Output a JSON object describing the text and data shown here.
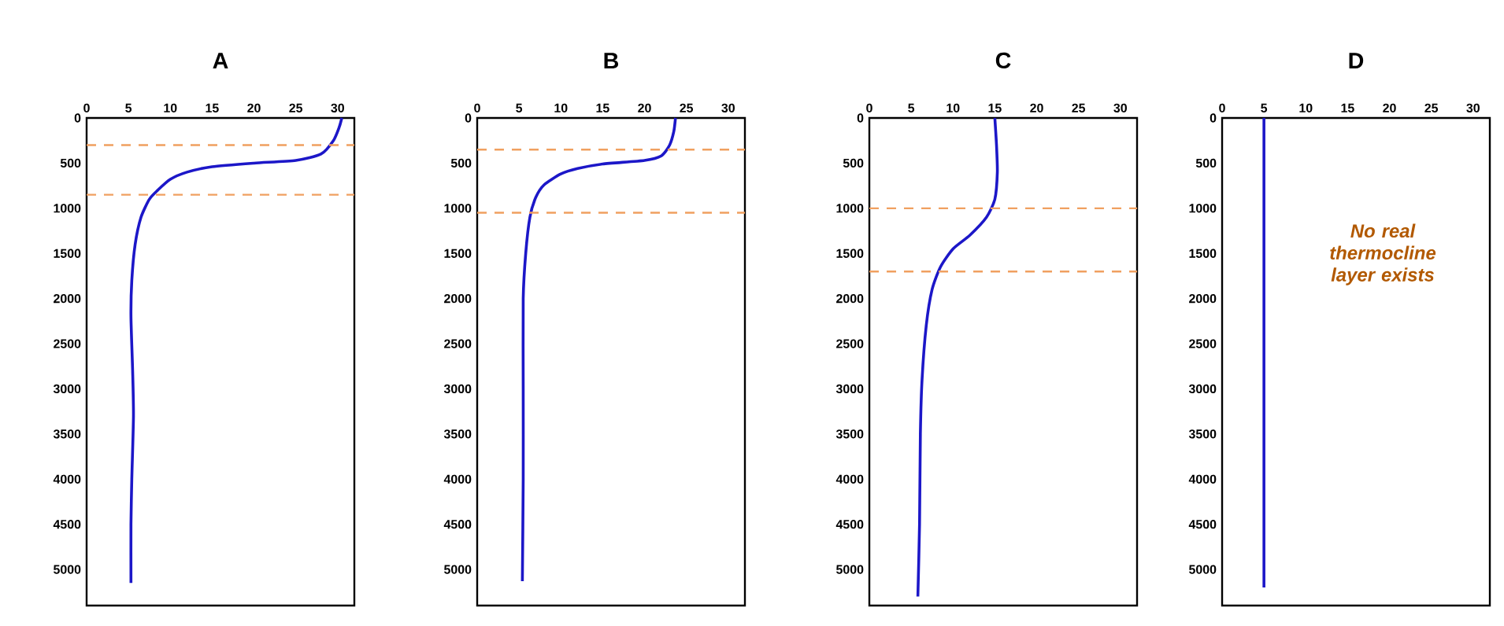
{
  "chart_data": [
    {
      "type": "line",
      "title": "A",
      "xlim": [
        0,
        32
      ],
      "xticks": [
        0,
        5,
        10,
        15,
        20,
        25,
        30
      ],
      "ylim": [
        5400,
        0
      ],
      "yticks": [
        0,
        500,
        1000,
        1500,
        2000,
        2500,
        3000,
        3500,
        4000,
        4500,
        5000
      ],
      "series": [
        {
          "color": "#1c17c8",
          "x": [
            30.5,
            30.2,
            29.5,
            28,
            25,
            20,
            15,
            12,
            10,
            8.5,
            7.5,
            6.5,
            5.8,
            5.4,
            5.3,
            5.5,
            5.6,
            5.4,
            5.3,
            5.3
          ],
          "values": [
            0,
            100,
            250,
            400,
            470,
            500,
            540,
            600,
            680,
            800,
            900,
            1100,
            1400,
            1800,
            2200,
            2800,
            3300,
            4000,
            4500,
            5150
          ]
        }
      ],
      "ref_lines": [
        {
          "axis": "y",
          "value": 300,
          "color": "#f0a060",
          "line_style": "dashed"
        },
        {
          "axis": "y",
          "value": 850,
          "color": "#f0a060",
          "line_style": "dashed"
        }
      ]
    },
    {
      "type": "line",
      "title": "B",
      "xlim": [
        0,
        32
      ],
      "xticks": [
        0,
        5,
        10,
        15,
        20,
        25,
        30
      ],
      "ylim": [
        5400,
        0
      ],
      "yticks": [
        0,
        500,
        1000,
        1500,
        2000,
        2500,
        3000,
        3500,
        4000,
        4500,
        5000
      ],
      "series": [
        {
          "color": "#1c17c8",
          "x": [
            23.7,
            23.5,
            23,
            22,
            20,
            15,
            12,
            10,
            8,
            7,
            6.3,
            5.8,
            5.5,
            5.5,
            5.5,
            5.4
          ],
          "values": [
            0,
            150,
            300,
            420,
            470,
            510,
            560,
            620,
            740,
            880,
            1100,
            1500,
            2000,
            3000,
            4000,
            5130
          ]
        }
      ],
      "ref_lines": [
        {
          "axis": "y",
          "value": 350,
          "color": "#f0a060",
          "line_style": "dashed"
        },
        {
          "axis": "y",
          "value": 1050,
          "color": "#f0a060",
          "line_style": "dashed"
        }
      ]
    },
    {
      "type": "line",
      "title": "C",
      "xlim": [
        0,
        32
      ],
      "xticks": [
        0,
        5,
        10,
        15,
        20,
        25,
        30
      ],
      "ylim": [
        5400,
        0
      ],
      "yticks": [
        0,
        500,
        1000,
        1500,
        2000,
        2500,
        3000,
        3500,
        4000,
        4500,
        5000
      ],
      "series": [
        {
          "color": "#1c17c8",
          "x": [
            15,
            15.2,
            15.3,
            15,
            14,
            12,
            10,
            8.5,
            7.5,
            6.8,
            6.3,
            6.1,
            6,
            5.8
          ],
          "values": [
            0,
            300,
            600,
            900,
            1100,
            1300,
            1450,
            1650,
            1900,
            2300,
            2900,
            3500,
            4500,
            5300
          ]
        }
      ],
      "ref_lines": [
        {
          "axis": "y",
          "value": 1000,
          "color": "#f0a060",
          "line_style": "dashed"
        },
        {
          "axis": "y",
          "value": 1700,
          "color": "#f0a060",
          "line_style": "dashed"
        }
      ]
    },
    {
      "type": "line",
      "title": "D",
      "xlim": [
        0,
        32
      ],
      "xticks": [
        0,
        5,
        10,
        15,
        20,
        25,
        30
      ],
      "ylim": [
        5400,
        0
      ],
      "yticks": [
        0,
        500,
        1000,
        1500,
        2000,
        2500,
        3000,
        3500,
        4000,
        4500,
        5000
      ],
      "series": [
        {
          "color": "#1c17c8",
          "x": [
            5,
            5
          ],
          "values": [
            0,
            5200
          ]
        }
      ],
      "annotations": [
        "No real thermocline layer exists"
      ]
    }
  ]
}
